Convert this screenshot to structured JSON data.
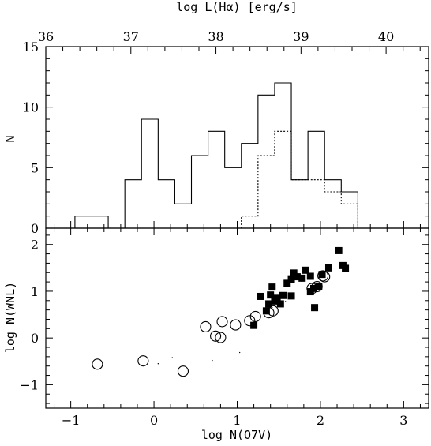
{
  "chart_data": [
    {
      "type": "histogram",
      "panel": "top",
      "ylabel": "N",
      "top_axis_label": "log L(Hα) [erg/s]",
      "top_axis_range": [
        36,
        40.5
      ],
      "top_axis_ticks": [
        "36",
        "37",
        "38",
        "39",
        "40"
      ],
      "xlim": [
        -1.3,
        3.3
      ],
      "ylim": [
        0,
        15
      ],
      "y_ticks": [
        "0",
        "5",
        "10",
        "15"
      ],
      "bin_width": 0.2,
      "series": [
        {
          "style": "solid",
          "bins": [
            {
              "x0": -0.95,
              "x1": -0.55,
              "y": 1
            },
            {
              "x0": -0.55,
              "x1": -0.35,
              "y": 0
            },
            {
              "x0": -0.35,
              "x1": -0.15,
              "y": 4
            },
            {
              "x0": -0.15,
              "x1": 0.05,
              "y": 9
            },
            {
              "x0": 0.05,
              "x1": 0.25,
              "y": 4
            },
            {
              "x0": 0.25,
              "x1": 0.45,
              "y": 2
            },
            {
              "x0": 0.45,
              "x1": 0.65,
              "y": 6
            },
            {
              "x0": 0.65,
              "x1": 0.85,
              "y": 8
            },
            {
              "x0": 0.85,
              "x1": 1.05,
              "y": 5
            },
            {
              "x0": 1.05,
              "x1": 1.25,
              "y": 7
            },
            {
              "x0": 1.25,
              "x1": 1.45,
              "y": 11
            },
            {
              "x0": 1.45,
              "x1": 1.65,
              "y": 12
            },
            {
              "x0": 1.65,
              "x1": 1.85,
              "y": 4
            },
            {
              "x0": 1.85,
              "x1": 2.05,
              "y": 8
            },
            {
              "x0": 2.05,
              "x1": 2.25,
              "y": 4
            },
            {
              "x0": 2.25,
              "x1": 2.45,
              "y": 3
            }
          ]
        },
        {
          "style": "dotted",
          "bins": [
            {
              "x0": 1.05,
              "x1": 1.25,
              "y": 1
            },
            {
              "x0": 1.25,
              "x1": 1.45,
              "y": 6
            },
            {
              "x0": 1.45,
              "x1": 1.65,
              "y": 8
            },
            {
              "x0": 1.65,
              "x1": 1.85,
              "y": 4
            },
            {
              "x0": 1.85,
              "x1": 2.05,
              "y": 4
            },
            {
              "x0": 2.05,
              "x1": 2.25,
              "y": 3
            },
            {
              "x0": 2.25,
              "x1": 2.45,
              "y": 2
            }
          ]
        }
      ]
    },
    {
      "type": "scatter",
      "panel": "bottom",
      "xlabel": "log N(O7V)",
      "ylabel": "log N(WNL)",
      "xlim": [
        -1.3,
        3.3
      ],
      "ylim": [
        -1.5,
        2.35
      ],
      "x_ticks": [
        "−1",
        "0",
        "1",
        "2",
        "3"
      ],
      "y_ticks": [
        "−1",
        "0",
        "1",
        "2"
      ],
      "series": [
        {
          "marker": "open-circle",
          "points": [
            [
              -0.68,
              -0.56
            ],
            [
              -0.13,
              -0.49
            ],
            [
              0.35,
              -0.71
            ],
            [
              0.62,
              0.24
            ],
            [
              0.74,
              0.04
            ],
            [
              0.8,
              0.01
            ],
            [
              0.82,
              0.35
            ],
            [
              0.98,
              0.28
            ],
            [
              1.15,
              0.37
            ],
            [
              1.22,
              0.46
            ],
            [
              1.38,
              0.54
            ],
            [
              1.43,
              0.58
            ],
            [
              1.9,
              1.06
            ],
            [
              1.96,
              1.1
            ],
            [
              2.03,
              1.33
            ],
            [
              2.05,
              1.31
            ]
          ]
        },
        {
          "marker": "filled-square",
          "points": [
            [
              1.2,
              0.27
            ],
            [
              1.28,
              0.89
            ],
            [
              1.35,
              0.58
            ],
            [
              1.38,
              0.73
            ],
            [
              1.4,
              0.92
            ],
            [
              1.42,
              1.09
            ],
            [
              1.45,
              0.79
            ],
            [
              1.48,
              0.85
            ],
            [
              1.52,
              0.73
            ],
            [
              1.55,
              0.91
            ],
            [
              1.6,
              1.17
            ],
            [
              1.65,
              1.25
            ],
            [
              1.65,
              0.9
            ],
            [
              1.68,
              1.39
            ],
            [
              1.72,
              1.31
            ],
            [
              1.78,
              1.28
            ],
            [
              1.82,
              1.45
            ],
            [
              1.88,
              1.32
            ],
            [
              1.88,
              0.99
            ],
            [
              1.92,
              1.06
            ],
            [
              1.93,
              0.65
            ],
            [
              1.98,
              1.1
            ],
            [
              2.02,
              1.36
            ],
            [
              2.1,
              1.5
            ],
            [
              2.22,
              1.87
            ],
            [
              2.27,
              1.55
            ],
            [
              2.3,
              1.49
            ]
          ]
        },
        {
          "marker": "dot",
          "points": [
            [
              0.05,
              -0.55
            ],
            [
              0.22,
              -0.42
            ],
            [
              0.7,
              -0.48
            ],
            [
              1.03,
              -0.31
            ],
            [
              1.35,
              0.45
            ],
            [
              1.42,
              0.65
            ],
            [
              1.58,
              0.78
            ],
            [
              1.62,
              0.92
            ]
          ]
        }
      ]
    }
  ]
}
